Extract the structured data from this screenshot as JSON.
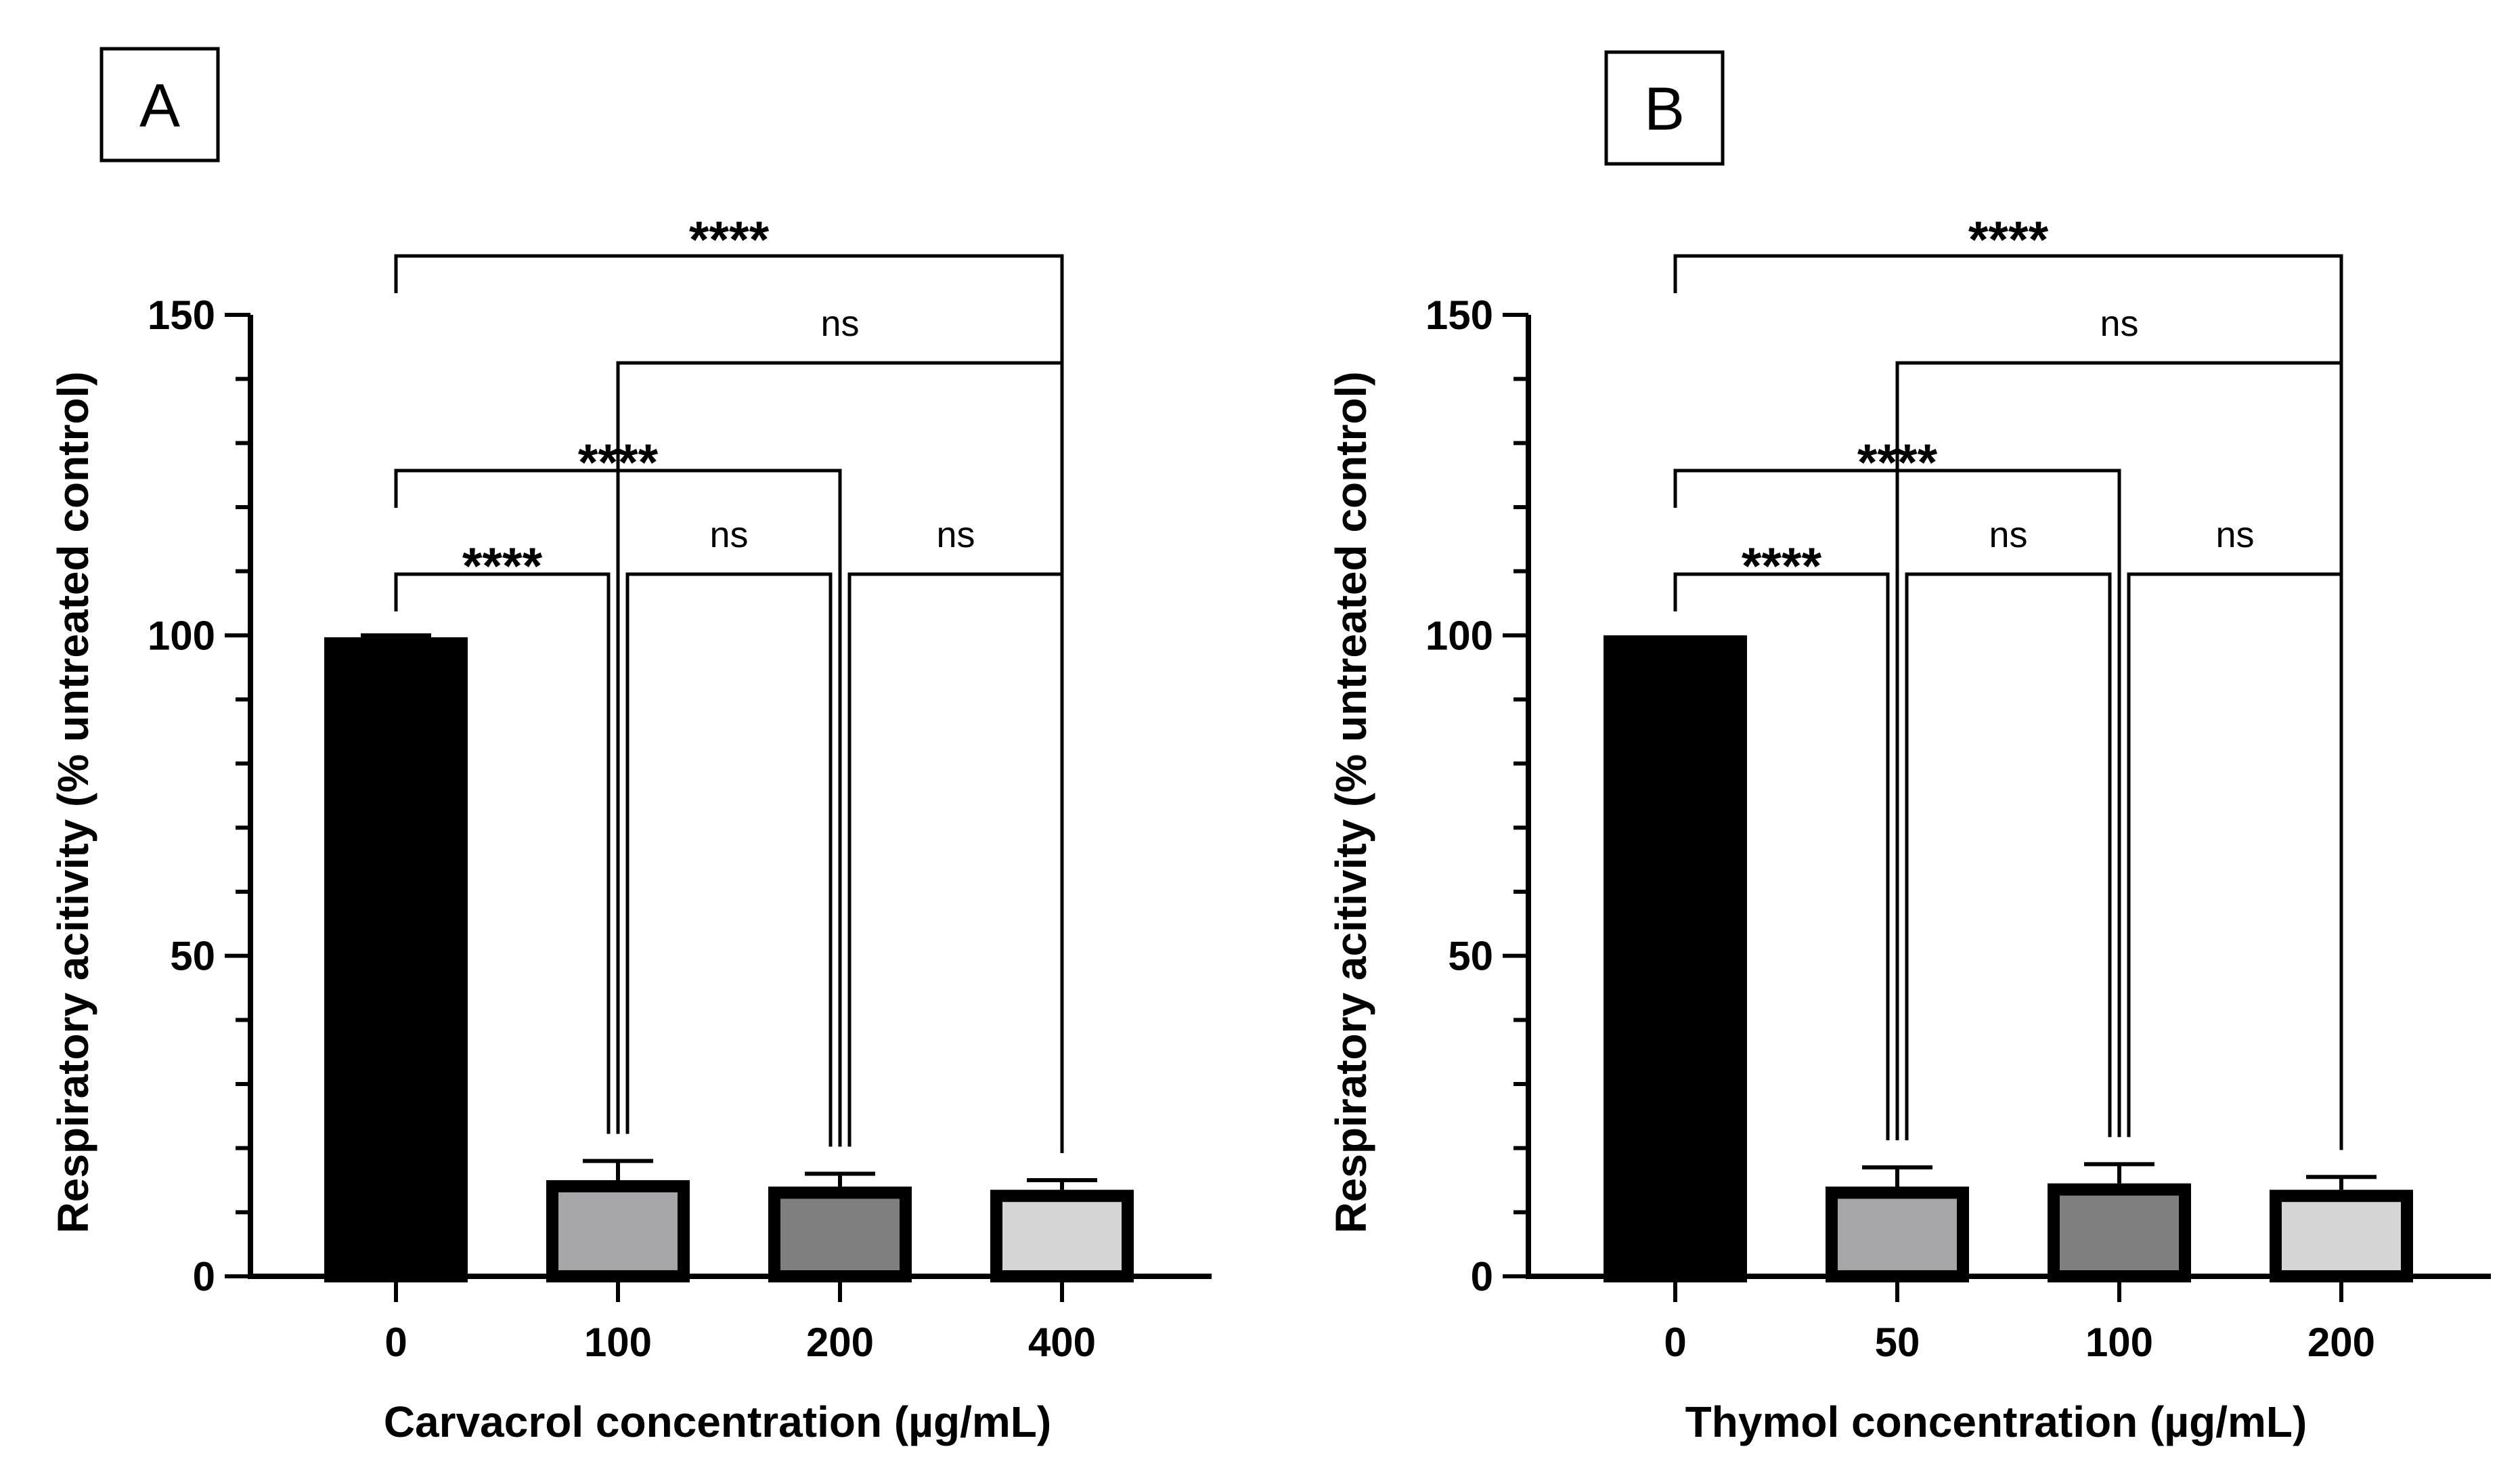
{
  "chart_data": [
    {
      "panel": "A",
      "type": "bar",
      "categories": [
        "0",
        "100",
        "200",
        "400"
      ],
      "values": [
        99.7,
        15.0,
        14.0,
        13.5
      ],
      "errors": [
        0.3,
        3.0,
        2.0,
        1.5
      ],
      "fills": [
        "#000000",
        "#a6a6a8",
        "#7f7f7f",
        "#d6d6d6"
      ],
      "xlabel": "Carvacrol concentration (µg/mL)",
      "ylabel": "Respiratory acitivity (% untreated control)",
      "ylim": [
        0,
        150
      ],
      "yticks": [
        "0",
        "50",
        "100",
        "150"
      ],
      "comparisons": [
        {
          "from": "0",
          "to": "400",
          "label": "****"
        },
        {
          "from": "100",
          "to": "400",
          "label": "ns"
        },
        {
          "from": "0",
          "to": "200",
          "label": "****"
        },
        {
          "from": "0",
          "to": "100",
          "label": "****"
        },
        {
          "from": "100",
          "to": "200",
          "label": "ns"
        },
        {
          "from": "200",
          "to": "400",
          "label": "ns"
        }
      ]
    },
    {
      "panel": "B",
      "type": "bar",
      "categories": [
        "0",
        "50",
        "100",
        "200"
      ],
      "values": [
        100.0,
        14.0,
        14.5,
        13.5
      ],
      "errors": [
        0.0,
        3.0,
        3.0,
        2.0
      ],
      "fills": [
        "#000000",
        "#a6a6a8",
        "#7f7f7f",
        "#d6d6d6"
      ],
      "xlabel": "Thymol concentration (µg/mL)",
      "ylabel": "Respiratory acitivity (% untreated control)",
      "ylim": [
        0,
        150
      ],
      "yticks": [
        "0",
        "50",
        "100",
        "150"
      ],
      "comparisons": [
        {
          "from": "0",
          "to": "200",
          "label": "****"
        },
        {
          "from": "50",
          "to": "200",
          "label": "ns"
        },
        {
          "from": "0",
          "to": "100",
          "label": "****"
        },
        {
          "from": "0",
          "to": "50",
          "label": "****"
        },
        {
          "from": "50",
          "to": "100",
          "label": "ns"
        },
        {
          "from": "100",
          "to": "200",
          "label": "ns"
        }
      ]
    }
  ]
}
